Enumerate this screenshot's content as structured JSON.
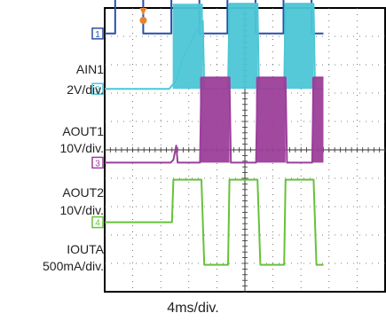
{
  "chart_data": {
    "type": "line",
    "title": "",
    "xlabel": "4ms/div.",
    "time_per_division_ms": 4,
    "divisions": 10,
    "grid": true,
    "time_ms": [
      0,
      1,
      1.5,
      5,
      5.5,
      9,
      9.5,
      13,
      13.5,
      17,
      17.5,
      21,
      21.5,
      25,
      25.5,
      29,
      29.5,
      31.2
    ],
    "channels": [
      {
        "name": "AIN1",
        "marker": "1",
        "label": "AIN1",
        "scale": "2V/div.",
        "color": "#2a4fa8",
        "unit": "V",
        "zero_div": 0.9,
        "samples": [
          {
            "t": 0,
            "v": 0
          },
          {
            "t": 1.5,
            "v": 0
          },
          {
            "t": 1.5,
            "v": 5.5
          },
          {
            "t": 5.5,
            "v": 5.5
          },
          {
            "t": 5.5,
            "v": 0
          },
          {
            "t": 9.5,
            "v": 0
          },
          {
            "t": 9.5,
            "v": 5.5
          },
          {
            "t": 13.5,
            "v": 5.5
          },
          {
            "t": 13.5,
            "v": 0
          },
          {
            "t": 17.5,
            "v": 0
          },
          {
            "t": 17.5,
            "v": 5.5
          },
          {
            "t": 21.5,
            "v": 5.5
          },
          {
            "t": 21.5,
            "v": 0
          },
          {
            "t": 25.5,
            "v": 0
          },
          {
            "t": 25.5,
            "v": 5.5
          },
          {
            "t": 29.5,
            "v": 5.5
          },
          {
            "t": 29.5,
            "v": 0
          },
          {
            "t": 31.2,
            "v": 0
          }
        ]
      },
      {
        "name": "AOUT1",
        "marker": "2",
        "label": "AOUT1",
        "scale": "10V/div.",
        "color": "#4cc6d6",
        "unit": "V",
        "zero_div": 2.85,
        "baseline_v": 0,
        "switching_bursts_ms": [
          [
            9.7,
            14
          ],
          [
            17.6,
            21.8
          ],
          [
            25.6,
            29.8
          ]
        ],
        "burst_high_v": 30,
        "samples": [
          {
            "t": 0,
            "v": 0
          },
          {
            "t": 9.2,
            "v": 0
          },
          {
            "t": 10.2,
            "v": 3
          },
          {
            "t": 11,
            "v": 10
          },
          {
            "t": 13,
            "v": 20
          },
          {
            "t": 14,
            "v": 24
          },
          {
            "t": 14.2,
            "v": 0
          },
          {
            "t": 17.6,
            "v": 0
          },
          {
            "t": 17.8,
            "v": 30
          },
          {
            "t": 21.8,
            "v": 30
          },
          {
            "t": 22,
            "v": 0
          },
          {
            "t": 25.6,
            "v": 0
          },
          {
            "t": 25.8,
            "v": 30
          },
          {
            "t": 29.8,
            "v": 30
          },
          {
            "t": 30,
            "v": 0
          },
          {
            "t": 31.2,
            "v": 0
          }
        ]
      },
      {
        "name": "AOUT2",
        "marker": "3",
        "label": "AOUT2",
        "scale": "10V/div.",
        "color": "#9b3f9a",
        "unit": "V",
        "zero_div": 5.45,
        "baseline_v": 0,
        "switching_bursts_ms": [
          [
            13.6,
            17.8
          ],
          [
            21.6,
            25.8
          ],
          [
            29.6,
            31.2
          ]
        ],
        "burst_high_v": 30,
        "samples": [
          {
            "t": 0,
            "v": 0
          },
          {
            "t": 9.4,
            "v": 0
          },
          {
            "t": 9.8,
            "v": 1
          },
          {
            "t": 10.2,
            "v": 6
          },
          {
            "t": 10.4,
            "v": 0
          },
          {
            "t": 13.6,
            "v": 0
          },
          {
            "t": 13.8,
            "v": 30
          },
          {
            "t": 17.8,
            "v": 30
          },
          {
            "t": 18,
            "v": 0
          },
          {
            "t": 21.6,
            "v": 0
          },
          {
            "t": 21.8,
            "v": 30
          },
          {
            "t": 25.8,
            "v": 30
          },
          {
            "t": 26,
            "v": 0
          },
          {
            "t": 29.6,
            "v": 0
          },
          {
            "t": 29.8,
            "v": 30
          },
          {
            "t": 31.2,
            "v": 30
          }
        ]
      },
      {
        "name": "IOUTA",
        "marker": "4",
        "label": "IOUTA",
        "scale": "500mA/div.",
        "color": "#66c23a",
        "unit": "mA",
        "zero_div": 7.55,
        "samples": [
          {
            "t": 0,
            "v": 0
          },
          {
            "t": 9.6,
            "v": 0
          },
          {
            "t": 9.8,
            "v": 750
          },
          {
            "t": 13.8,
            "v": 750
          },
          {
            "t": 14.2,
            "v": -750
          },
          {
            "t": 17.6,
            "v": -750
          },
          {
            "t": 17.8,
            "v": 750
          },
          {
            "t": 21.8,
            "v": 750
          },
          {
            "t": 22.2,
            "v": -750
          },
          {
            "t": 25.6,
            "v": -750
          },
          {
            "t": 25.8,
            "v": 750
          },
          {
            "t": 29.8,
            "v": 750
          },
          {
            "t": 30.2,
            "v": -750
          },
          {
            "t": 31.2,
            "v": -750
          }
        ]
      }
    ],
    "trigger_marker_color": "#e8842a"
  }
}
